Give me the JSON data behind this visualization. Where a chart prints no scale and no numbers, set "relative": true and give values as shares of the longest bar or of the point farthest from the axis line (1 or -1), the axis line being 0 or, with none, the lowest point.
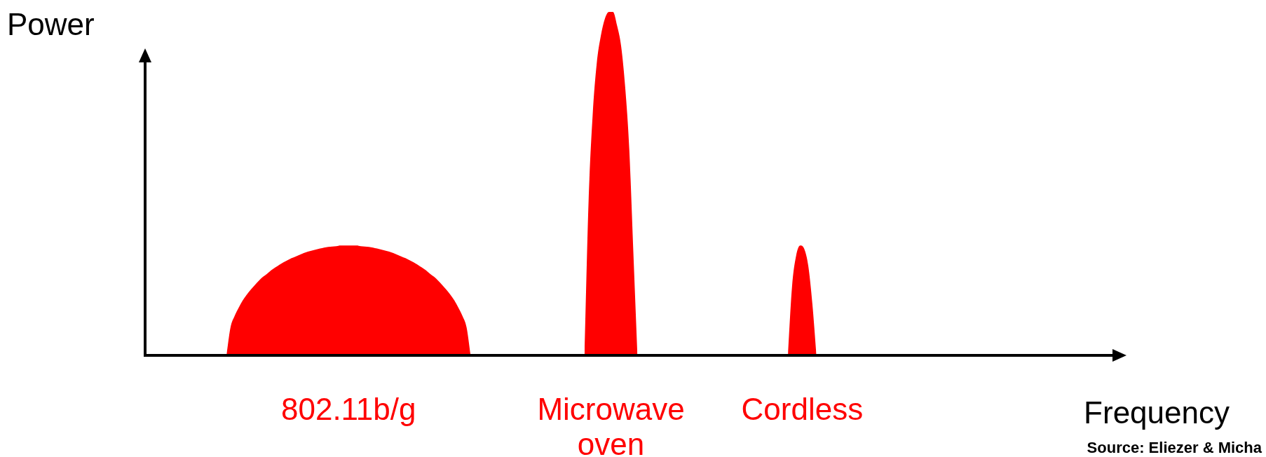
{
  "chart_data": {
    "type": "area",
    "relative": true,
    "ylabel": "Power",
    "xlabel": "Frequency",
    "annotations": [
      "Source: Eliezer & Micha"
    ],
    "categories": [
      null,
      null,
      null,
      null,
      null,
      null,
      null,
      null,
      null,
      null,
      null,
      null,
      null,
      null,
      null,
      null,
      null,
      null,
      null,
      null,
      null,
      null,
      null,
      null,
      null,
      null,
      null,
      null,
      null,
      null,
      null,
      null,
      null,
      null,
      null,
      null,
      null,
      null,
      null,
      null,
      null,
      null,
      null,
      null,
      null,
      null,
      null,
      null,
      null,
      null,
      null,
      null,
      null,
      null,
      null,
      null,
      null,
      null,
      null,
      null,
      null,
      null,
      null,
      null,
      null,
      null,
      null,
      null,
      null,
      null,
      null,
      null,
      null,
      null,
      null,
      null,
      null,
      null,
      null,
      null,
      null,
      null,
      null,
      null,
      null,
      null,
      null,
      null,
      null,
      null,
      null,
      null,
      null,
      null,
      null,
      null,
      null,
      null,
      null,
      null,
      null,
      null,
      null,
      null,
      null,
      null,
      null,
      null,
      null,
      null,
      null,
      null,
      null,
      null,
      null,
      null,
      null,
      null,
      null,
      null,
      null,
      null,
      null,
      null,
      null,
      null,
      null,
      null,
      null,
      null,
      null,
      null,
      null,
      null,
      null,
      null,
      null,
      null,
      null,
      null,
      null,
      null,
      null,
      null,
      null,
      null,
      null,
      null,
      null,
      null,
      null,
      null,
      null,
      null,
      null,
      null,
      null,
      null,
      null,
      null,
      null,
      null,
      null,
      null,
      null,
      null,
      null,
      null,
      null,
      null,
      null,
      null,
      null,
      null,
      null,
      null,
      null,
      null,
      null,
      null,
      null,
      null,
      null,
      null,
      null,
      null,
      null,
      null,
      null,
      null,
      null,
      null,
      null,
      null,
      null,
      null,
      null,
      null,
      null,
      null,
      null,
      null,
      null,
      null,
      null,
      null,
      null,
      null,
      null,
      null,
      null,
      null,
      null,
      null,
      null,
      null,
      null,
      null,
      null,
      null,
      null,
      null,
      null,
      null,
      null,
      null,
      null,
      null,
      null,
      null,
      null,
      null,
      null,
      null,
      null,
      null,
      null,
      null,
      null,
      null,
      null
    ],
    "series": [
      {
        "name": "802.11b/g",
        "color": "#ff0000",
        "values": [
          null,
          null,
          null,
          null,
          null,
          null,
          null,
          null,
          null,
          null,
          null,
          null,
          null,
          null,
          null,
          null,
          null,
          null,
          null,
          null,
          0,
          0.082,
          0.115,
          0.139,
          0.16,
          0.177,
          0.192,
          0.205,
          0.218,
          0.229,
          0.238,
          0.248,
          0.256,
          0.264,
          0.271,
          0.277,
          0.283,
          0.288,
          0.293,
          0.298,
          0.302,
          0.305,
          0.308,
          0.311,
          0.314,
          0.316,
          0.317,
          0.318,
          0.32,
          0.32,
          0.32,
          0.32,
          0.32,
          0.318,
          0.317,
          0.316,
          0.314,
          0.311,
          0.308,
          0.305,
          0.302,
          0.298,
          0.293,
          0.288,
          0.283,
          0.277,
          0.271,
          0.264,
          0.256,
          0.248,
          0.238,
          0.229,
          0.218,
          0.205,
          0.192,
          0.177,
          0.16,
          0.139,
          0.115,
          0.082,
          0,
          null,
          null,
          null,
          null,
          null,
          null,
          null,
          null,
          null,
          null,
          null,
          null,
          null,
          null,
          null,
          null,
          null,
          null,
          null,
          null,
          null,
          null,
          null,
          null,
          null,
          null,
          null,
          null,
          null,
          null,
          null,
          null,
          null,
          null,
          null,
          null,
          null,
          null,
          null,
          null,
          null,
          null,
          null,
          null,
          null,
          null,
          null,
          null,
          null,
          null,
          null,
          null,
          null,
          null,
          null,
          null,
          null,
          null,
          null,
          null,
          null,
          null,
          null,
          null,
          null,
          null,
          null,
          null,
          null,
          null,
          null,
          null,
          null,
          null,
          null,
          null,
          null,
          null,
          null,
          null,
          null,
          null,
          null,
          null,
          null,
          null,
          null,
          null,
          null,
          null,
          null,
          null,
          null,
          null,
          null,
          null,
          null,
          null,
          null,
          null,
          null,
          null,
          null,
          null,
          null,
          null,
          null,
          null,
          null,
          null,
          null,
          null,
          null,
          null,
          null,
          null,
          null,
          null,
          null,
          null,
          null,
          null,
          null,
          null,
          null,
          null,
          null,
          null,
          null,
          null,
          null,
          null,
          null,
          null,
          null,
          null,
          null,
          null,
          null,
          null,
          null,
          null,
          null,
          null,
          null,
          null,
          null,
          null,
          null,
          null,
          null,
          null,
          null,
          null,
          null,
          null,
          null,
          null,
          null,
          null
        ]
      },
      {
        "name": "Microwave oven",
        "color": "#ff0000",
        "values": [
          null,
          null,
          null,
          null,
          null,
          null,
          null,
          null,
          null,
          null,
          null,
          null,
          null,
          null,
          null,
          null,
          null,
          null,
          null,
          null,
          null,
          null,
          null,
          null,
          null,
          null,
          null,
          null,
          null,
          null,
          null,
          null,
          null,
          null,
          null,
          null,
          null,
          null,
          null,
          null,
          null,
          null,
          null,
          null,
          null,
          null,
          null,
          null,
          null,
          null,
          null,
          null,
          null,
          null,
          null,
          null,
          null,
          null,
          null,
          null,
          null,
          null,
          null,
          null,
          null,
          null,
          null,
          null,
          null,
          null,
          null,
          null,
          null,
          null,
          null,
          null,
          null,
          null,
          null,
          null,
          null,
          null,
          null,
          null,
          null,
          null,
          null,
          null,
          null,
          null,
          null,
          null,
          null,
          null,
          null,
          null,
          null,
          null,
          null,
          null,
          null,
          null,
          null,
          null,
          null,
          null,
          null,
          null,
          0,
          0.45,
          0.7,
          0.85,
          0.93,
          0.98,
          1,
          1,
          0.96,
          0.9,
          0.78,
          0.6,
          0.3,
          0,
          null,
          null,
          null,
          null,
          null,
          null,
          null,
          null,
          null,
          null,
          null,
          null,
          null,
          null,
          null,
          null,
          null,
          null,
          null,
          null,
          null,
          null,
          null,
          null,
          null,
          null,
          null,
          null,
          null,
          null,
          null,
          null,
          null,
          null,
          null,
          null,
          null,
          null,
          null,
          null,
          null,
          null,
          null,
          null,
          null,
          null,
          null,
          null,
          null,
          null,
          null,
          null,
          null,
          null,
          null,
          null,
          null,
          null,
          null,
          null,
          null,
          null,
          null,
          null,
          null,
          null,
          null,
          null,
          null,
          null,
          null,
          null,
          null,
          null,
          null,
          null,
          null,
          null,
          null,
          null,
          null,
          null,
          null,
          null,
          null,
          null,
          null,
          null,
          null,
          null,
          null,
          null,
          null,
          null,
          null,
          null,
          null,
          null,
          null,
          null,
          null,
          null,
          null,
          null,
          null,
          null,
          null,
          null,
          null,
          null,
          null,
          null,
          null,
          null,
          null,
          null,
          null,
          null,
          null
        ]
      },
      {
        "name": "Cordless",
        "color": "#ff0000",
        "values": [
          null,
          null,
          null,
          null,
          null,
          null,
          null,
          null,
          null,
          null,
          null,
          null,
          null,
          null,
          null,
          null,
          null,
          null,
          null,
          null,
          null,
          null,
          null,
          null,
          null,
          null,
          null,
          null,
          null,
          null,
          null,
          null,
          null,
          null,
          null,
          null,
          null,
          null,
          null,
          null,
          null,
          null,
          null,
          null,
          null,
          null,
          null,
          null,
          null,
          null,
          null,
          null,
          null,
          null,
          null,
          null,
          null,
          null,
          null,
          null,
          null,
          null,
          null,
          null,
          null,
          null,
          null,
          null,
          null,
          null,
          null,
          null,
          null,
          null,
          null,
          null,
          null,
          null,
          null,
          null,
          null,
          null,
          null,
          null,
          null,
          null,
          null,
          null,
          null,
          null,
          null,
          null,
          null,
          null,
          null,
          null,
          null,
          null,
          null,
          null,
          null,
          null,
          null,
          null,
          null,
          null,
          null,
          null,
          null,
          null,
          null,
          null,
          null,
          null,
          null,
          null,
          null,
          null,
          null,
          null,
          null,
          null,
          null,
          null,
          null,
          null,
          null,
          null,
          null,
          null,
          null,
          null,
          null,
          null,
          null,
          null,
          null,
          null,
          null,
          null,
          null,
          null,
          null,
          null,
          null,
          null,
          null,
          null,
          null,
          null,
          null,
          null,
          null,
          null,
          null,
          null,
          null,
          null,
          0,
          0.2,
          0.29,
          0.32,
          0.31,
          0.26,
          0.15,
          0,
          null,
          null,
          null,
          null,
          null,
          null,
          null,
          null,
          null,
          null,
          null,
          null,
          null,
          null,
          null,
          null,
          null,
          null,
          null,
          null,
          null,
          null,
          null,
          null,
          null,
          null,
          null,
          null,
          null,
          null,
          null,
          null,
          null,
          null,
          null,
          null,
          null,
          null,
          null,
          null,
          null,
          null,
          null,
          null,
          null,
          null,
          null,
          null,
          null,
          null,
          null,
          null,
          null,
          null,
          null,
          null,
          null,
          null,
          null,
          null,
          null,
          null,
          null,
          null,
          null,
          null,
          null,
          null,
          null,
          null,
          null,
          null,
          null,
          null,
          null
        ]
      }
    ]
  }
}
